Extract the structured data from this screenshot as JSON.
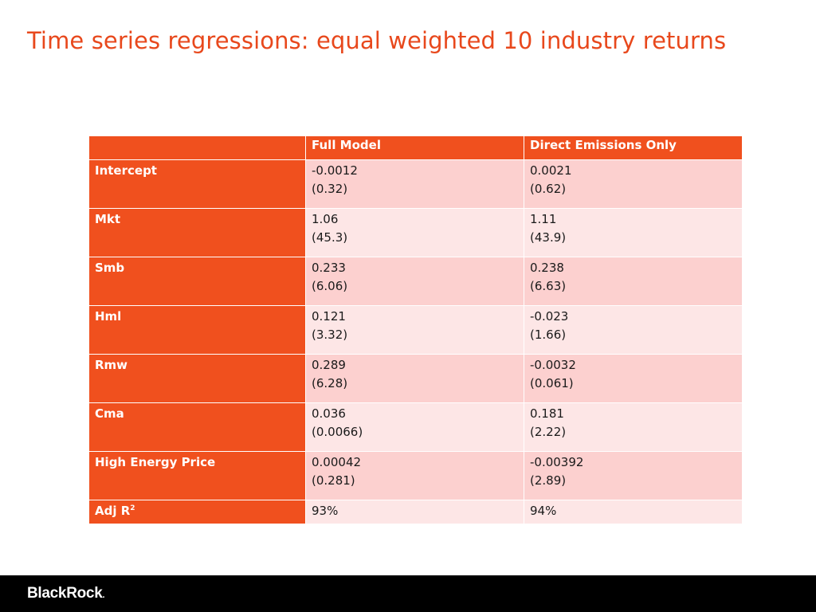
{
  "slide": {
    "title": "Time series regressions: equal weighted 10 industry returns"
  },
  "table": {
    "headers": [
      "",
      "Full Model",
      "Direct Emissions Only"
    ],
    "rows": [
      {
        "label": "Intercept",
        "full_coef": "-0.0012",
        "full_t": "(0.32)",
        "direct_coef": "0.0021",
        "direct_t": "(0.62)"
      },
      {
        "label": "Mkt",
        "full_coef": "1.06",
        "full_t": "(45.3)",
        "direct_coef": "1.11",
        "direct_t": "(43.9)"
      },
      {
        "label": "Smb",
        "full_coef": "0.233",
        "full_t": "(6.06)",
        "direct_coef": "0.238",
        "direct_t": "(6.63)"
      },
      {
        "label": "Hml",
        "full_coef": "0.121",
        "full_t": "(3.32)",
        "direct_coef": "-0.023",
        "direct_t": "(1.66)"
      },
      {
        "label": "Rmw",
        "full_coef": "0.289",
        "full_t": "(6.28)",
        "direct_coef": "-0.0032",
        "direct_t": "(0.061)"
      },
      {
        "label": "Cma",
        "full_coef": "0.036",
        "full_t": "(0.0066)",
        "direct_coef": "0.181",
        "direct_t": "(2.22)"
      },
      {
        "label": "High Energy Price",
        "full_coef": "0.00042",
        "full_t": "(0.281)",
        "direct_coef": "-0.00392",
        "direct_t": "(2.89)"
      }
    ],
    "adj_r2": {
      "label": "Adj R",
      "sup": "2",
      "full": "93%",
      "direct": "94%"
    }
  },
  "footer": {
    "logo_text": "BlackRock",
    "logo_dot": "."
  },
  "colors": {
    "accent": "#f0501e",
    "title": "#e8481c",
    "row_dark": "#fcd0cf",
    "row_light": "#fde6e6",
    "footer_bg": "#000000"
  }
}
